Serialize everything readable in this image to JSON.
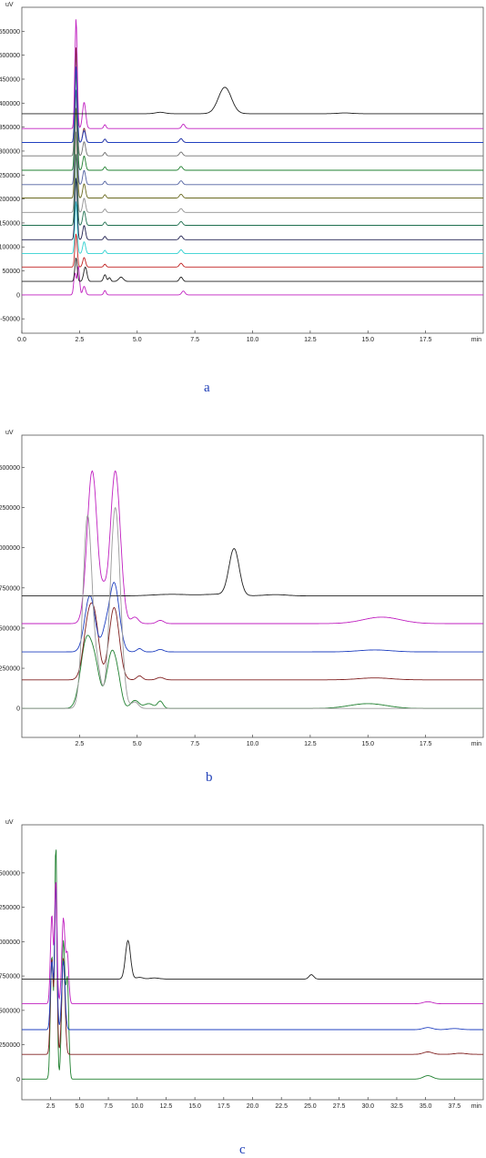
{
  "chart_data": [
    {
      "panel_label": "a",
      "type": "line",
      "ylabel": "uV",
      "xlabel": "min",
      "xlim": [
        0,
        20
      ],
      "ylim": [
        -80000,
        600000
      ],
      "x_ticks": [
        "0.0",
        "2.5",
        "5.0",
        "7.5",
        "10.0",
        "12.5",
        "15.0",
        "17.5"
      ],
      "x_tick_values": [
        0,
        2.5,
        5,
        7.5,
        10,
        12.5,
        15,
        17.5
      ],
      "y_ticks": [
        "-50000",
        "0",
        "50000",
        "100000",
        "150000",
        "200000",
        "250000",
        "300000",
        "350000",
        "400000",
        "450000",
        "500000",
        "550000"
      ],
      "y_tick_values": [
        -50000,
        0,
        50000,
        100000,
        150000,
        200000,
        250000,
        300000,
        350000,
        400000,
        450000,
        500000,
        550000
      ],
      "grid": false,
      "series": [
        {
          "color": "#c020c0",
          "baseline": 0,
          "peaks": [
            [
              2.3,
              45000,
              0.05
            ],
            [
              2.45,
              60000,
              0.05
            ],
            [
              2.7,
              18000,
              0.06
            ],
            [
              3.6,
              9000,
              0.05
            ],
            [
              7.0,
              8000,
              0.07
            ]
          ]
        },
        {
          "color": "#202020",
          "baseline": 28000,
          "peaks": [
            [
              2.35,
              50000,
              0.05
            ],
            [
              2.75,
              30000,
              0.07
            ],
            [
              3.6,
              14000,
              0.06
            ],
            [
              3.8,
              8000,
              0.05
            ],
            [
              4.3,
              9000,
              0.1
            ],
            [
              6.9,
              9000,
              0.07
            ]
          ]
        },
        {
          "color": "#c02020",
          "baseline": 58000,
          "peaks": [
            [
              2.35,
              70000,
              0.05
            ],
            [
              2.7,
              20000,
              0.06
            ],
            [
              3.6,
              6000,
              0.05
            ],
            [
              6.9,
              8000,
              0.07
            ]
          ]
        },
        {
          "color": "#30d0d0",
          "baseline": 86000,
          "peaks": [
            [
              2.35,
              110000,
              0.05
            ],
            [
              2.7,
              25000,
              0.06
            ],
            [
              3.6,
              7000,
              0.05
            ],
            [
              6.9,
              8000,
              0.07
            ]
          ]
        },
        {
          "color": "#202050",
          "baseline": 115000,
          "peaks": [
            [
              2.35,
              130000,
              0.05
            ],
            [
              2.7,
              30000,
              0.06
            ],
            [
              3.6,
              7000,
              0.05
            ],
            [
              6.9,
              8000,
              0.07
            ]
          ]
        },
        {
          "color": "#207050",
          "baseline": 145000,
          "peaks": [
            [
              2.35,
              150000,
              0.05
            ],
            [
              2.7,
              30000,
              0.06
            ],
            [
              3.6,
              7000,
              0.05
            ],
            [
              6.9,
              8000,
              0.07
            ]
          ]
        },
        {
          "color": "#909090",
          "baseline": 172000,
          "peaks": [
            [
              2.35,
              170000,
              0.05
            ],
            [
              2.7,
              30000,
              0.06
            ],
            [
              3.6,
              7000,
              0.05
            ],
            [
              6.9,
              8000,
              0.07
            ]
          ]
        },
        {
          "color": "#6a6a20",
          "baseline": 202000,
          "peaks": [
            [
              2.35,
              190000,
              0.05
            ],
            [
              2.7,
              30000,
              0.06
            ],
            [
              3.6,
              7000,
              0.05
            ],
            [
              6.9,
              8000,
              0.07
            ]
          ]
        },
        {
          "color": "#5060a0",
          "baseline": 230000,
          "peaks": [
            [
              2.35,
              200000,
              0.05
            ],
            [
              2.7,
              30000,
              0.06
            ],
            [
              3.6,
              7000,
              0.05
            ],
            [
              6.9,
              8000,
              0.07
            ]
          ]
        },
        {
          "color": "#208030",
          "baseline": 260000,
          "peaks": [
            [
              2.35,
              210000,
              0.05
            ],
            [
              2.7,
              30000,
              0.06
            ],
            [
              3.6,
              7000,
              0.05
            ],
            [
              6.9,
              8000,
              0.07
            ]
          ]
        },
        {
          "color": "#707070",
          "baseline": 290000,
          "peaks": [
            [
              2.35,
              215000,
              0.05
            ],
            [
              2.7,
              30000,
              0.06
            ],
            [
              3.6,
              7000,
              0.05
            ],
            [
              6.9,
              8000,
              0.07
            ]
          ]
        },
        {
          "color": "#803030",
          "baseline": 318000,
          "peaks": [
            [
              2.35,
              200000,
              0.05
            ],
            [
              2.7,
              30000,
              0.06
            ],
            [
              3.6,
              7000,
              0.05
            ],
            [
              6.9,
              8000,
              0.07
            ]
          ]
        },
        {
          "color": "#2040c0",
          "baseline": 318000,
          "peaks": [
            [
              2.35,
              160000,
              0.05
            ],
            [
              2.7,
              25000,
              0.06
            ],
            [
              3.6,
              7000,
              0.05
            ],
            [
              6.9,
              8000,
              0.07
            ]
          ]
        },
        {
          "color": "#c020c0",
          "baseline": 347000,
          "peaks": [
            [
              2.35,
              230000,
              0.05
            ],
            [
              2.7,
              55000,
              0.07
            ],
            [
              3.6,
              8000,
              0.05
            ],
            [
              7.0,
              9000,
              0.07
            ]
          ]
        },
        {
          "color": "#202020",
          "baseline": 378000,
          "peaks": [
            [
              6.0,
              3000,
              0.2
            ],
            [
              8.8,
              55000,
              0.28
            ],
            [
              14.0,
              1500,
              0.3
            ]
          ]
        }
      ]
    },
    {
      "panel_label": "b",
      "type": "line",
      "ylabel": "uV",
      "xlabel": "min",
      "xlim": [
        0,
        20
      ],
      "ylim": [
        -180000,
        1700000
      ],
      "x_ticks": [
        "2.5",
        "5.0",
        "7.5",
        "10.0",
        "12.5",
        "15.0",
        "17.5"
      ],
      "x_tick_values": [
        2.5,
        5,
        7.5,
        10,
        12.5,
        15,
        17.5
      ],
      "y_ticks": [
        "0",
        "250000",
        "500000",
        "750000",
        "1000000",
        "1250000",
        "1500000"
      ],
      "y_tick_values": [
        0,
        250000,
        500000,
        750000,
        1000000,
        1250000,
        1500000
      ],
      "grid": false,
      "series": [
        {
          "color": "#208030",
          "baseline": 0,
          "peaks": [
            [
              2.8,
              420000,
              0.25
            ],
            [
              3.2,
              200000,
              0.2
            ],
            [
              3.9,
              350000,
              0.22
            ],
            [
              4.2,
              80000,
              0.15
            ],
            [
              4.9,
              50000,
              0.18
            ],
            [
              5.5,
              30000,
              0.2
            ],
            [
              6.0,
              45000,
              0.12
            ],
            [
              15.0,
              30000,
              0.8
            ]
          ]
        },
        {
          "color": "#802020",
          "baseline": 178000,
          "peaks": [
            [
              2.9,
              380000,
              0.22
            ],
            [
              3.2,
              250000,
              0.18
            ],
            [
              4.0,
              450000,
              0.22
            ],
            [
              5.1,
              25000,
              0.12
            ],
            [
              6.0,
              15000,
              0.15
            ],
            [
              15.3,
              12000,
              0.7
            ]
          ]
        },
        {
          "color": "#2040c0",
          "baseline": 352000,
          "peaks": [
            [
              2.95,
              350000,
              0.22
            ],
            [
              3.6,
              90000,
              0.15
            ],
            [
              4.0,
              430000,
              0.22
            ],
            [
              5.1,
              20000,
              0.12
            ],
            [
              6.0,
              15000,
              0.15
            ],
            [
              15.3,
              12000,
              0.7
            ]
          ]
        },
        {
          "color": "#c020c0",
          "baseline": 528000,
          "peaks": [
            [
              3.05,
              950000,
              0.22
            ],
            [
              3.55,
              120000,
              0.12
            ],
            [
              4.05,
              950000,
              0.22
            ],
            [
              4.9,
              40000,
              0.15
            ],
            [
              6.0,
              20000,
              0.15
            ],
            [
              15.6,
              40000,
              0.8
            ]
          ]
        },
        {
          "color": "#202020",
          "baseline": 700000,
          "peaks": [
            [
              6.5,
              10000,
              0.8
            ],
            [
              8.5,
              10000,
              0.6
            ],
            [
              9.2,
              290000,
              0.22
            ],
            [
              11.0,
              8000,
              0.5
            ]
          ]
        },
        {
          "color": "#9a9a9a",
          "baseline": 0,
          "peaks": [
            [
              2.85,
              1200000,
              0.2
            ],
            [
              3.3,
              200000,
              0.15
            ],
            [
              4.05,
              1250000,
              0.22
            ],
            [
              4.9,
              40000,
              0.15
            ]
          ]
        }
      ]
    },
    {
      "panel_label": "c",
      "type": "line",
      "ylabel": "uV",
      "xlabel": "min",
      "xlim": [
        0,
        40
      ],
      "ylim": [
        -150000,
        1850000
      ],
      "x_ticks": [
        "2.5",
        "5.0",
        "7.5",
        "10.0",
        "12.5",
        "15.0",
        "17.5",
        "20.0",
        "22.5",
        "25.0",
        "27.5",
        "30.0",
        "32.5",
        "35.0",
        "37.5"
      ],
      "x_tick_values": [
        2.5,
        5,
        7.5,
        10,
        12.5,
        15,
        17.5,
        20,
        22.5,
        25,
        27.5,
        30,
        32.5,
        35,
        37.5
      ],
      "y_ticks": [
        "0",
        "250000",
        "500000",
        "750000",
        "1000000",
        "1250000",
        "1500000"
      ],
      "y_tick_values": [
        0,
        250000,
        500000,
        750000,
        1000000,
        1250000,
        1500000
      ],
      "grid": false,
      "series": [
        {
          "color": "#208030",
          "baseline": 0,
          "peaks": [
            [
              2.6,
              900000,
              0.12
            ],
            [
              2.95,
              1700000,
              0.1
            ],
            [
              3.6,
              1000000,
              0.14
            ],
            [
              3.95,
              700000,
              0.12
            ],
            [
              35.2,
              25000,
              0.4
            ]
          ]
        },
        {
          "color": "#802020",
          "baseline": 180000,
          "peaks": [
            [
              2.6,
              700000,
              0.12
            ],
            [
              2.95,
              1250000,
              0.1
            ],
            [
              3.6,
              700000,
              0.14
            ],
            [
              35.2,
              18000,
              0.4
            ],
            [
              38.0,
              8000,
              0.5
            ]
          ]
        },
        {
          "color": "#2040c0",
          "baseline": 360000,
          "peaks": [
            [
              2.6,
              500000,
              0.12
            ],
            [
              2.95,
              1050000,
              0.1
            ],
            [
              3.6,
              500000,
              0.14
            ],
            [
              35.2,
              15000,
              0.4
            ],
            [
              37.5,
              8000,
              0.5
            ]
          ]
        },
        {
          "color": "#c020c0",
          "baseline": 548000,
          "peaks": [
            [
              2.6,
              650000,
              0.12
            ],
            [
              2.95,
              900000,
              0.1
            ],
            [
              3.6,
              620000,
              0.14
            ],
            [
              3.95,
              350000,
              0.12
            ],
            [
              35.2,
              15000,
              0.4
            ]
          ]
        },
        {
          "color": "#202020",
          "baseline": 728000,
          "peaks": [
            [
              9.2,
              280000,
              0.22
            ],
            [
              10.2,
              12000,
              0.3
            ],
            [
              11.5,
              8000,
              0.4
            ],
            [
              25.1,
              32000,
              0.2
            ]
          ]
        }
      ]
    }
  ]
}
